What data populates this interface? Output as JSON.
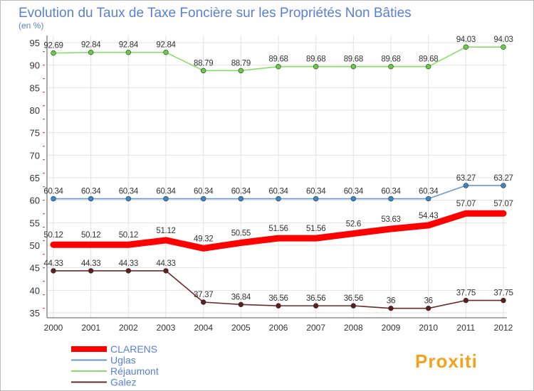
{
  "chart_data": {
    "type": "line",
    "title": "Evolution du Taux de Taxe Foncière sur les Propriétés Non Bâties",
    "subtitle": "(en %)",
    "xlabel": "",
    "ylabel": "(en %)",
    "categories": [
      "2000",
      "2001",
      "2002",
      "2003",
      "2004",
      "2005",
      "2006",
      "2007",
      "2008",
      "2009",
      "2010",
      "2011",
      "2012"
    ],
    "ylim": [
      35,
      95
    ],
    "yticks": [
      35,
      40,
      45,
      50,
      55,
      60,
      65,
      70,
      75,
      80,
      85,
      90,
      95
    ],
    "grid": true,
    "legend_position": "bottom-left",
    "series": [
      {
        "name": "CLARENS",
        "color": "#ff0000",
        "emphasis": true,
        "values": [
          50.12,
          50.12,
          50.12,
          51.12,
          49.32,
          50.55,
          51.56,
          51.56,
          52.6,
          53.63,
          54.43,
          57.07,
          57.07
        ],
        "labels": [
          "50.12",
          "50.12",
          "50.12",
          "51.12",
          "49.32",
          "50.55",
          "51.56",
          "51.56",
          "52.6",
          "53.63",
          "54.43",
          "57.07",
          "57.07"
        ]
      },
      {
        "name": "Uglas",
        "color": "#6699cc",
        "marker_color": "#3a87c8",
        "values": [
          60.34,
          60.34,
          60.34,
          60.34,
          60.34,
          60.34,
          60.34,
          60.34,
          60.34,
          60.34,
          60.34,
          63.27,
          63.27
        ],
        "labels": [
          "60.34",
          "60.34",
          "60.34",
          "60.34",
          "60.34",
          "60.34",
          "60.34",
          "60.34",
          "60.34",
          "60.34",
          "60.34",
          "63.27",
          "63.27"
        ]
      },
      {
        "name": "Réjaumont",
        "color": "#88dd66",
        "marker_color": "#66cc44",
        "values": [
          92.69,
          92.84,
          92.84,
          92.84,
          88.79,
          88.79,
          89.68,
          89.68,
          89.68,
          89.68,
          89.68,
          94.03,
          94.03
        ],
        "labels": [
          "92.69",
          "92.84",
          "92.84",
          "92.84",
          "88.79",
          "88.79",
          "89.68",
          "89.68",
          "89.68",
          "89.68",
          "89.68",
          "94.03",
          "94.03"
        ]
      },
      {
        "name": "Galez",
        "color": "#6b2a2a",
        "marker_color": "#5a1f1f",
        "values": [
          44.33,
          44.33,
          44.33,
          44.33,
          37.37,
          36.84,
          36.56,
          36.56,
          36.56,
          36,
          36,
          37.75,
          37.75
        ],
        "labels": [
          "44.33",
          "44.33",
          "44.33",
          "44.33",
          "37.37",
          "36.84",
          "36.56",
          "36.56",
          "36.56",
          "36",
          "36",
          "37.75",
          "37.75"
        ]
      }
    ]
  },
  "branding": {
    "logo_text": "Proxiti"
  }
}
